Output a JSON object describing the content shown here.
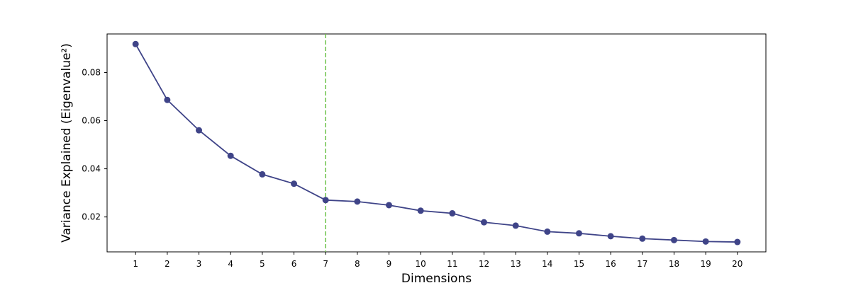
{
  "chart_data": {
    "type": "line",
    "xlabel": "Dimensions",
    "ylabel": "Variance Explained (Eigenvalue²)",
    "x": [
      1,
      2,
      3,
      4,
      5,
      6,
      7,
      8,
      9,
      10,
      11,
      12,
      13,
      14,
      15,
      16,
      17,
      18,
      19,
      20
    ],
    "y": [
      0.0918,
      0.0686,
      0.056,
      0.0454,
      0.0377,
      0.0338,
      0.027,
      0.0264,
      0.0249,
      0.0226,
      0.0215,
      0.0178,
      0.0164,
      0.0139,
      0.0132,
      0.012,
      0.011,
      0.0104,
      0.0098,
      0.0096
    ],
    "xlim": [
      0.1,
      20.9
    ],
    "ylim": [
      0.0055,
      0.096
    ],
    "xticks": [
      1,
      2,
      3,
      4,
      5,
      6,
      7,
      8,
      9,
      10,
      11,
      12,
      13,
      14,
      15,
      16,
      17,
      18,
      19,
      20
    ],
    "yticks": [
      0.02,
      0.04,
      0.06,
      0.08
    ],
    "ytick_labels": [
      "0.02",
      "0.04",
      "0.06",
      "0.08"
    ],
    "reference_line": {
      "axis": "x",
      "value": 7,
      "style": "dashed",
      "color": "#6cc24a"
    },
    "line_color": "#3f4488",
    "marker": "circle",
    "grid": false,
    "legend": false
  }
}
